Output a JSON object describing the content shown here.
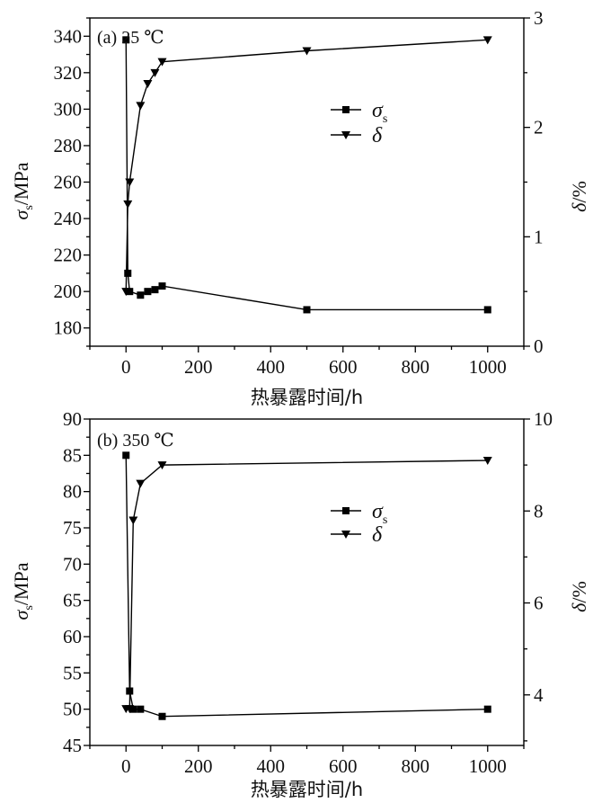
{
  "chart_data": [
    {
      "type": "line",
      "annotation": "(a) 25 ℃",
      "xlabel": "热暴露时间/h",
      "ylabel_left": {
        "symbol": "σ",
        "sub": "s",
        "unit": "/MPa"
      },
      "ylabel_right": {
        "symbol": "δ",
        "unit": "/%"
      },
      "xlim": [
        -100,
        1100
      ],
      "xticks": [
        0,
        200,
        400,
        600,
        800,
        1000
      ],
      "xminor": 100,
      "ylim_left": [
        170,
        350
      ],
      "yticks_left": [
        180,
        200,
        220,
        240,
        260,
        280,
        300,
        320,
        340
      ],
      "yminor_left": 10,
      "ylim_right": [
        0,
        3
      ],
      "yticks_right": [
        0,
        1,
        2,
        3
      ],
      "yminor_right": 0.5,
      "grid": false,
      "legend_position": "upper-right",
      "series": [
        {
          "name": "σ",
          "name_sub": "s",
          "axis": "left",
          "marker": "square",
          "color": "#000000",
          "x": [
            0,
            5,
            10,
            40,
            60,
            80,
            100,
            500,
            1000
          ],
          "y": [
            338,
            210,
            200,
            198,
            200,
            201,
            203,
            190,
            190
          ]
        },
        {
          "name": "δ",
          "axis": "right",
          "marker": "triangle-down",
          "color": "#000000",
          "x": [
            0,
            5,
            10,
            40,
            60,
            80,
            100,
            500,
            1000
          ],
          "y": [
            0.5,
            1.3,
            1.5,
            2.2,
            2.4,
            2.5,
            2.6,
            2.7,
            2.8
          ]
        }
      ]
    },
    {
      "type": "line",
      "annotation": "(b) 350 ℃",
      "xlabel": "热暴露时间/h",
      "ylabel_left": {
        "symbol": "σ",
        "sub": "s",
        "unit": "/MPa"
      },
      "ylabel_right": {
        "symbol": "δ",
        "unit": "/%"
      },
      "xlim": [
        -100,
        1100
      ],
      "xticks": [
        0,
        200,
        400,
        600,
        800,
        1000
      ],
      "xminor": 100,
      "ylim_left": [
        45,
        90
      ],
      "yticks_left": [
        45,
        50,
        55,
        60,
        65,
        70,
        75,
        80,
        85,
        90
      ],
      "yminor_left": 2.5,
      "ylim_right": [
        2.9,
        10
      ],
      "yticks_right": [
        4,
        6,
        8,
        10
      ],
      "yminor_right": 1,
      "grid": false,
      "legend_position": "center-right",
      "series": [
        {
          "name": "σ",
          "name_sub": "s",
          "axis": "left",
          "marker": "square",
          "color": "#000000",
          "x": [
            0,
            10,
            20,
            40,
            100,
            1000
          ],
          "y": [
            85,
            52.5,
            50,
            50,
            49,
            50
          ]
        },
        {
          "name": "δ",
          "axis": "right",
          "marker": "triangle-down",
          "color": "#000000",
          "x": [
            0,
            10,
            20,
            40,
            100,
            1000
          ],
          "y": [
            3.7,
            3.7,
            7.8,
            8.6,
            9.0,
            9.1
          ]
        }
      ]
    }
  ]
}
